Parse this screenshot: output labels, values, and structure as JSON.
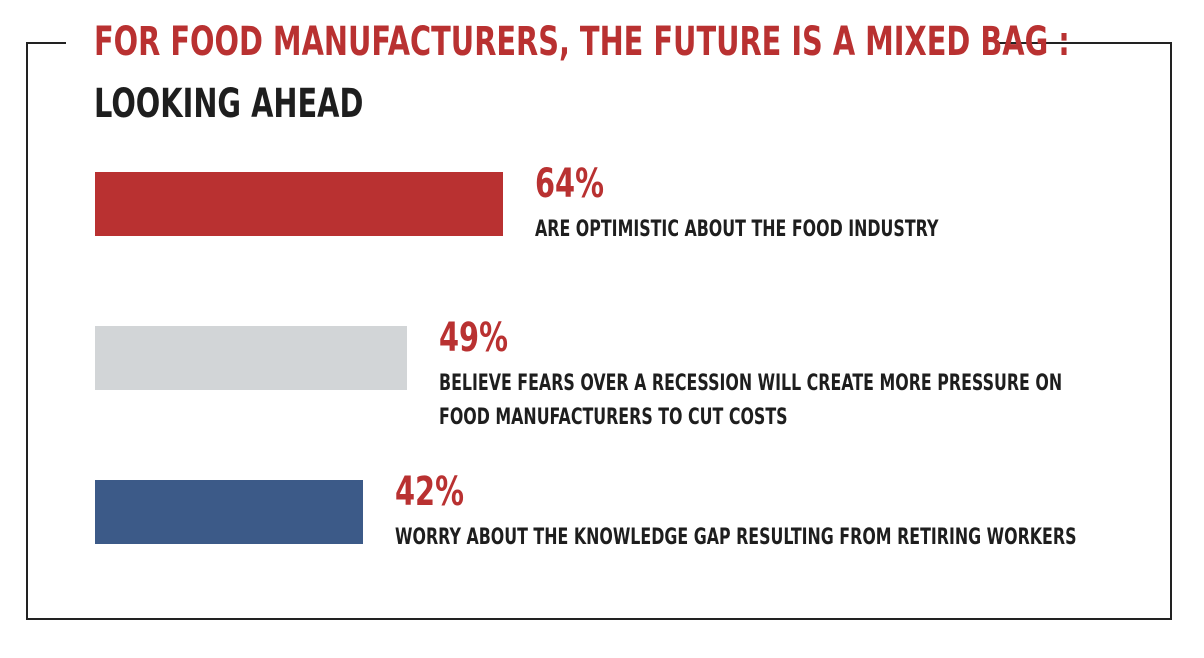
{
  "title": "FOR FOOD MANUFACTURERS, THE FUTURE IS A MIXED BAG :",
  "subtitle": "LOOKING AHEAD",
  "chart_data": {
    "type": "bar",
    "title": "FOR FOOD MANUFACTURERS, THE FUTURE IS A MIXED BAG :",
    "subtitle": "LOOKING AHEAD",
    "orientation": "horizontal",
    "unit": "%",
    "xlim": [
      0,
      100
    ],
    "grid": false,
    "items": [
      {
        "value": 64,
        "label": "64%",
        "description_lines": [
          "ARE OPTIMISTIC ABOUT THE FOOD INDUSTRY"
        ],
        "color": "#b93131"
      },
      {
        "value": 49,
        "label": "49%",
        "description_lines": [
          "BELIEVE FEARS OVER A RECESSION WILL CREATE MORE PRESSURE ON",
          "FOOD MANUFACTURERS TO CUT COSTS"
        ],
        "color": "#d2d5d7"
      },
      {
        "value": 42,
        "label": "42%",
        "description_lines": [
          "WORRY ABOUT THE KNOWLEDGE GAP RESULTING FROM RETIRING WORKERS"
        ],
        "color": "#3c5a88"
      }
    ]
  },
  "colors": {
    "title": "#b93131",
    "text": "#1e1e1e",
    "frame": "#222222"
  }
}
